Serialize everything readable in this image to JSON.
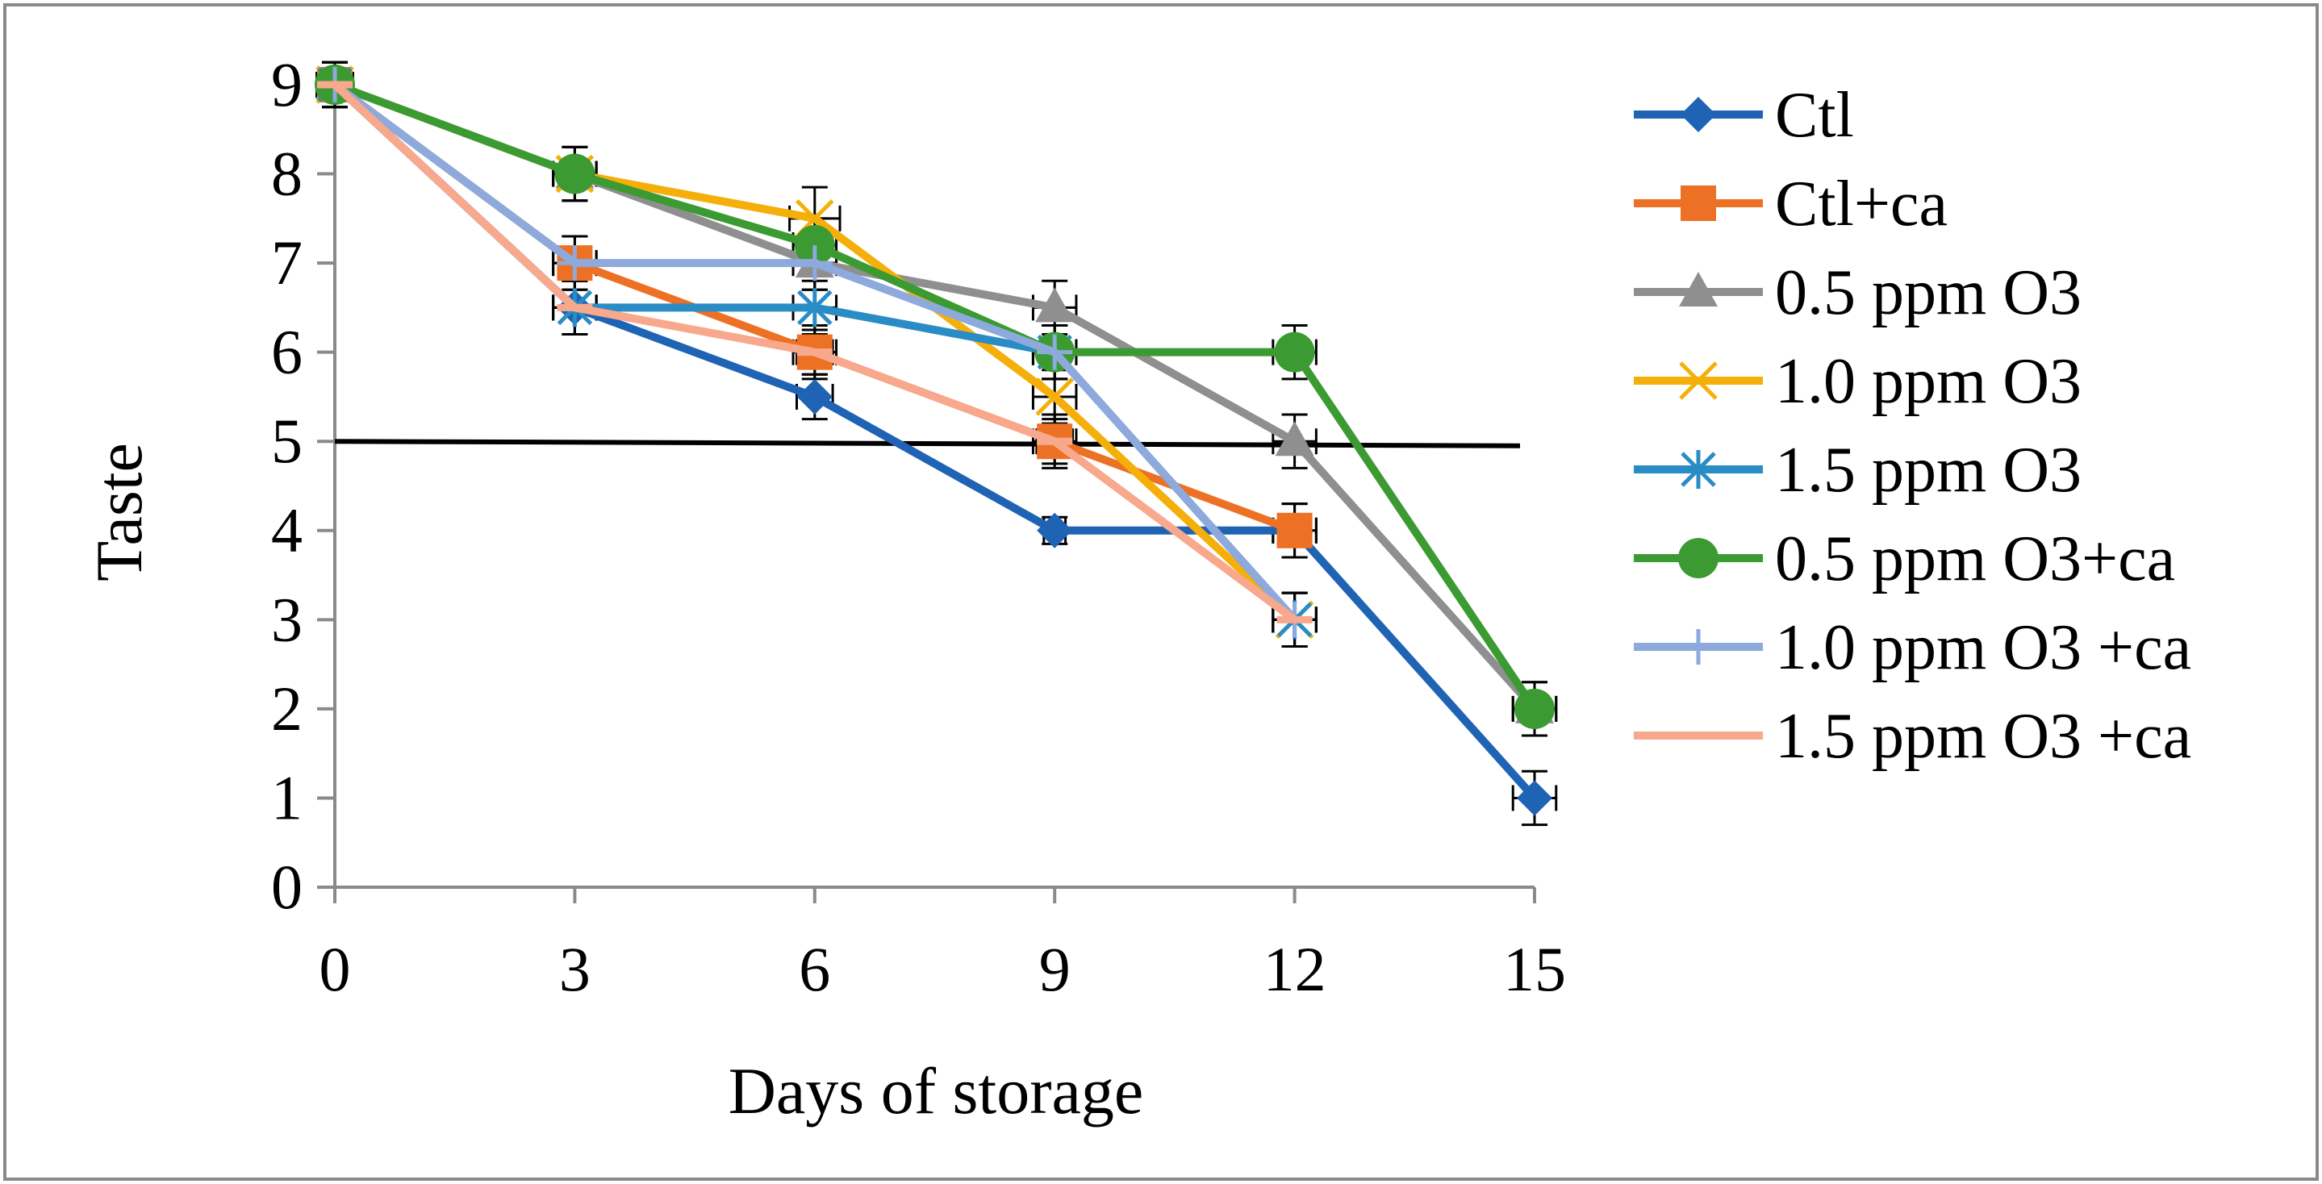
{
  "chart_data": {
    "type": "line",
    "title": "",
    "xlabel": "Days of storage",
    "ylabel": "Taste",
    "x": [
      0,
      3,
      6,
      9,
      12,
      15
    ],
    "xticks": [
      "0",
      "3",
      "6",
      "9",
      "12",
      "15"
    ],
    "yticks": [
      "0",
      "1",
      "2",
      "3",
      "4",
      "5",
      "6",
      "7",
      "8",
      "9"
    ],
    "xlim": [
      0,
      15
    ],
    "ylim": [
      0,
      9
    ],
    "grid": false,
    "legend_position": "right",
    "reference_line": {
      "y_start": 5.0,
      "y_end": 4.95,
      "color": "#000000"
    },
    "series": [
      {
        "name": "Ctl",
        "color": "#1F63B4",
        "marker": "diamond",
        "x": [
          0,
          3,
          6,
          9,
          12,
          15
        ],
        "values": [
          9,
          6.5,
          5.5,
          4,
          4,
          1
        ],
        "errors": [
          0.25,
          0.3,
          0.25,
          0.15,
          0.3,
          0.3
        ]
      },
      {
        "name": "Ctl+ca",
        "color": "#ED7125",
        "marker": "square",
        "x": [
          0,
          3,
          6,
          9,
          12
        ],
        "values": [
          9,
          7,
          6,
          5,
          4
        ],
        "errors": [
          0.25,
          0.3,
          0.25,
          0.25,
          0.3
        ]
      },
      {
        "name": "0.5 ppm O3",
        "color": "#8F8F8F",
        "marker": "triangle",
        "x": [
          0,
          3,
          6,
          9,
          12,
          15
        ],
        "values": [
          9,
          8,
          7,
          6.5,
          5,
          2
        ],
        "errors": [
          0.25,
          0.3,
          0.3,
          0.3,
          0.3,
          0.3
        ]
      },
      {
        "name": "1.0 ppm O3",
        "color": "#F5AF0A",
        "marker": "x",
        "x": [
          0,
          3,
          6,
          9,
          12
        ],
        "values": [
          9,
          8,
          7.5,
          5.5,
          3
        ],
        "errors": [
          0.25,
          0.3,
          0.35,
          0.3,
          0.3
        ]
      },
      {
        "name": "1.5 ppm O3",
        "color": "#2A8CC4",
        "marker": "asterisk",
        "x": [
          0,
          3,
          6,
          9,
          12
        ],
        "values": [
          9,
          6.5,
          6.5,
          6,
          3
        ],
        "errors": [
          0.25,
          0.3,
          0.3,
          0.3,
          0.3
        ]
      },
      {
        "name": "0.5 ppm O3+ca",
        "color": "#3B9A32",
        "marker": "circle",
        "x": [
          0,
          3,
          6,
          9,
          12,
          15
        ],
        "values": [
          9,
          8,
          7.2,
          6,
          6,
          2
        ],
        "errors": [
          0.25,
          0.3,
          0.3,
          0.3,
          0.3,
          0.3
        ]
      },
      {
        "name": "1.0 ppm O3 +ca",
        "color": "#8EA9DB",
        "marker": "plus",
        "x": [
          0,
          3,
          6,
          9,
          12
        ],
        "values": [
          9,
          7,
          7,
          6,
          3
        ],
        "errors": [
          0.25,
          0.3,
          0.3,
          0.3,
          0.3
        ]
      },
      {
        "name": "1.5 ppm O3 +ca",
        "color": "#F8A88C",
        "marker": "dash",
        "x": [
          0,
          3,
          6,
          9,
          12
        ],
        "values": [
          9,
          6.5,
          6,
          5,
          3
        ],
        "errors": [
          0.25,
          0.3,
          0.3,
          0.3,
          0.3
        ]
      }
    ]
  }
}
